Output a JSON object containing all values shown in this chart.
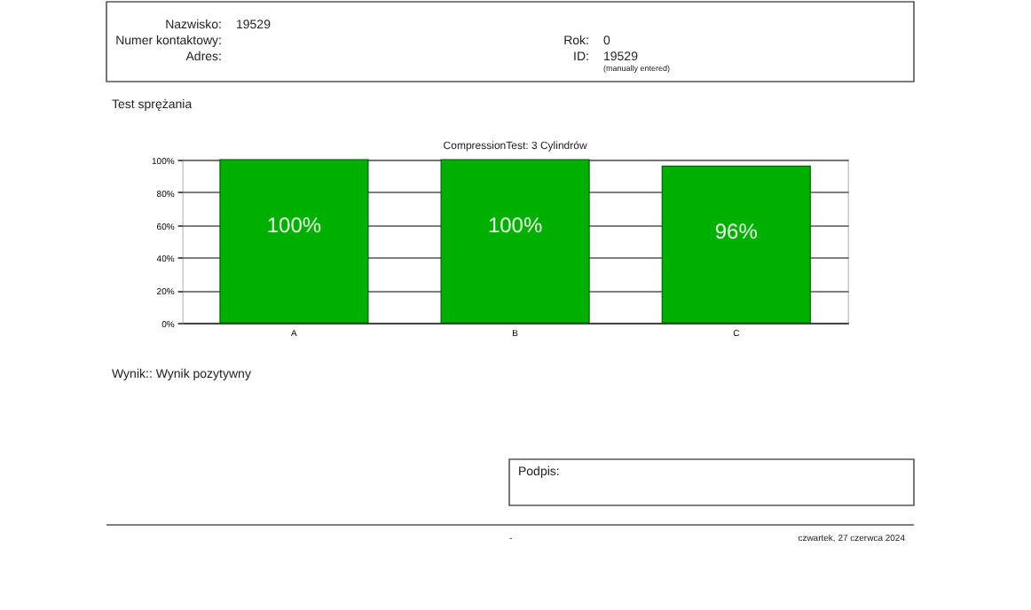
{
  "chart_data": {
    "type": "bar",
    "title": "CompressionTest: 3 Cylindrów",
    "categories": [
      "A",
      "B",
      "C"
    ],
    "values": [
      100,
      100,
      96
    ],
    "value_labels": [
      "100%",
      "100%",
      "96%"
    ],
    "color": "#00b000",
    "ylim": [
      0,
      100
    ],
    "yticks": [
      {
        "value": 0,
        "label": "0%"
      },
      {
        "value": 20,
        "label": "20%"
      },
      {
        "value": 40,
        "label": "40%"
      },
      {
        "value": 60,
        "label": "60%"
      },
      {
        "value": 80,
        "label": "80%"
      },
      {
        "value": 100,
        "label": "100%"
      }
    ],
    "grid": "y",
    "annotations": [
      "Nazwisko:",
      "19529",
      "Numer kontaktowy:",
      "Adres:",
      "Rok:",
      "0",
      "ID:",
      "19529",
      "(manually entered)",
      "Test sprężania",
      "Wynik:: Wynik pozytywny",
      "Podpis:",
      "-",
      "czwartek, 27 czerwca 2024"
    ]
  }
}
